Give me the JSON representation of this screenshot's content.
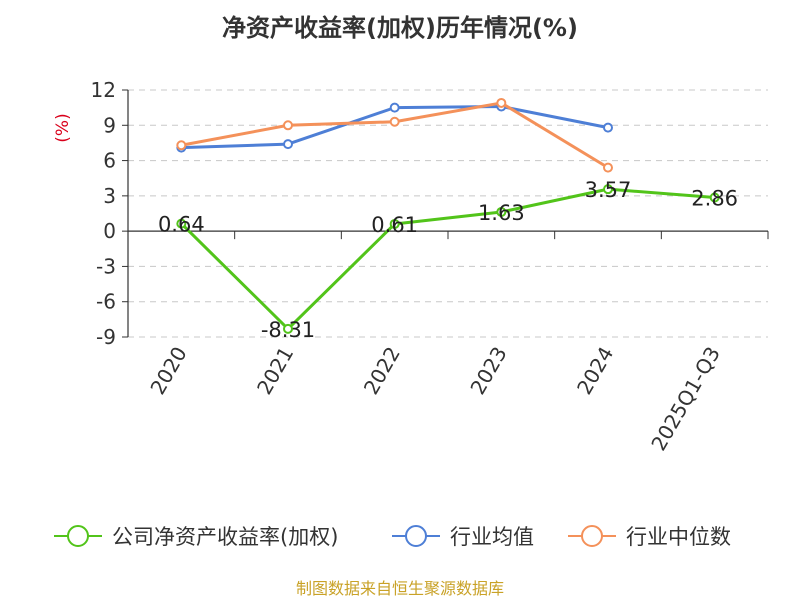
{
  "chart_data": {
    "type": "line",
    "title": "净资产收益率(加权)历年情况(%)",
    "ylabel": "(%)",
    "categories": [
      "2020",
      "2021",
      "2022",
      "2023",
      "2024",
      "2025Q1-Q3"
    ],
    "ylim": [
      -9,
      12
    ],
    "yticks": [
      12,
      9,
      6,
      3,
      0,
      -3,
      -6,
      -9
    ],
    "ytick_labels": [
      "12",
      "9",
      "6",
      "3",
      "0",
      "-3",
      "-6",
      "-9"
    ],
    "grid": true,
    "legend_position": "bottom",
    "series": [
      {
        "name": "公司净资产收益率(加权)",
        "color": "#52c41a",
        "values": [
          0.64,
          -8.31,
          0.61,
          1.63,
          3.57,
          2.86
        ],
        "labels": [
          "0.64",
          "-8.31",
          "0.61",
          "1.63",
          "3.57",
          "2.86"
        ]
      },
      {
        "name": "行业均值",
        "color": "#4e7fd6",
        "values": [
          7.1,
          7.4,
          10.5,
          10.6,
          8.8,
          null
        ]
      },
      {
        "name": "行业中位数",
        "color": "#f4915a",
        "values": [
          7.3,
          9.0,
          9.3,
          10.9,
          5.4,
          null
        ]
      }
    ]
  },
  "footer": {
    "source": "制图数据来自恒生聚源数据库"
  }
}
